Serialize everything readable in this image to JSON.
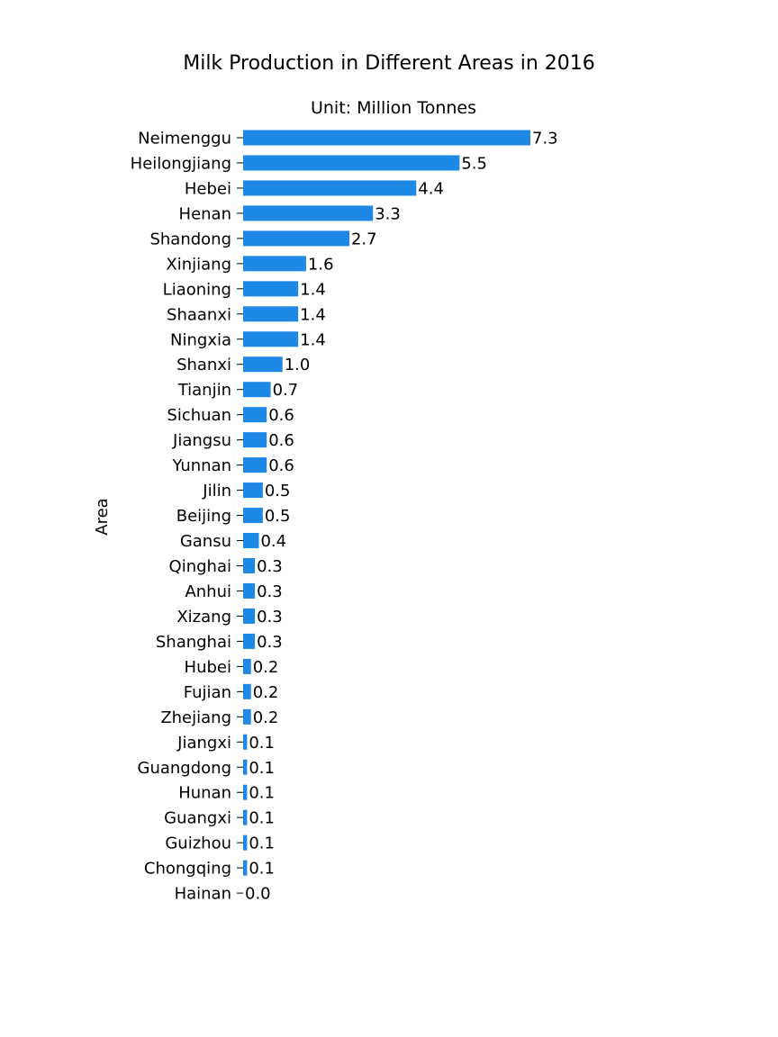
{
  "chart_data": {
    "type": "bar",
    "orientation": "horizontal",
    "title": "Milk Production in Different Areas in 2016",
    "subtitle": "Unit: Million Tonnes",
    "xlabel": "",
    "ylabel": "Area",
    "bar_color": "#1e88e5",
    "xlim": [
      0,
      7.3
    ],
    "grid": false,
    "legend": "none",
    "categories": [
      "Neimenggu",
      "Heilongjiang",
      "Hebei",
      "Henan",
      "Shandong",
      "Xinjiang",
      "Liaoning",
      "Shaanxi",
      "Ningxia",
      "Shanxi",
      "Tianjin",
      "Sichuan",
      "Jiangsu",
      "Yunnan",
      "Jilin",
      "Beijing",
      "Gansu",
      "Qinghai",
      "Anhui",
      "Xizang",
      "Shanghai",
      "Hubei",
      "Fujian",
      "Zhejiang",
      "Jiangxi",
      "Guangdong",
      "Hunan",
      "Guangxi",
      "Guizhou",
      "Chongqing",
      "Hainan"
    ],
    "values": [
      7.3,
      5.5,
      4.4,
      3.3,
      2.7,
      1.6,
      1.4,
      1.4,
      1.4,
      1.0,
      0.7,
      0.6,
      0.6,
      0.6,
      0.5,
      0.5,
      0.4,
      0.3,
      0.3,
      0.3,
      0.3,
      0.2,
      0.2,
      0.2,
      0.1,
      0.1,
      0.1,
      0.1,
      0.1,
      0.1,
      0.0
    ],
    "value_labels": [
      "7.3",
      "5.5",
      "4.4",
      "3.3",
      "2.7",
      "1.6",
      "1.4",
      "1.4",
      "1.4",
      "1.0",
      "0.7",
      "0.6",
      "0.6",
      "0.6",
      "0.5",
      "0.5",
      "0.4",
      "0.3",
      "0.3",
      "0.3",
      "0.3",
      "0.2",
      "0.2",
      "0.2",
      "0.1",
      "0.1",
      "0.1",
      "0.1",
      "0.1",
      "0.1",
      "0.0"
    ]
  }
}
